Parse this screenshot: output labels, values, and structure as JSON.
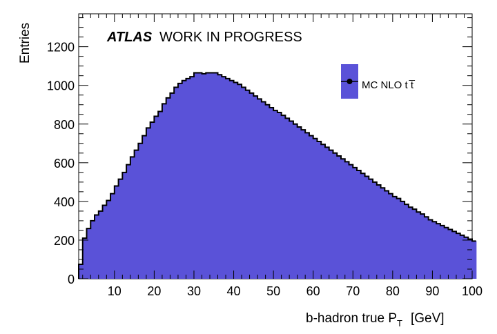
{
  "chart_data": {
    "type": "histogram",
    "header": {
      "experiment": "ATLAS",
      "status": "WORK IN PROGRESS"
    },
    "xlabel": {
      "main": "b-hadron true P",
      "subscript": "T",
      "unit": "[GeV]"
    },
    "ylabel": "Entries",
    "xlim": [
      1,
      100
    ],
    "ylim": [
      0,
      1370
    ],
    "bin_width": 1,
    "x_ticks": [
      10,
      20,
      30,
      40,
      50,
      60,
      70,
      80,
      90,
      100
    ],
    "x_tick_labels": [
      "10",
      "20",
      "30",
      "40",
      "50",
      "60",
      "70",
      "80",
      "90",
      "100"
    ],
    "y_ticks": [
      0,
      200,
      400,
      600,
      800,
      1000,
      1200
    ],
    "y_tick_labels": [
      "0",
      "200",
      "400",
      "600",
      "800",
      "1000",
      "1200"
    ],
    "legend": {
      "label": "MC NLO t  t̅",
      "placement": "top-right"
    },
    "series": [
      {
        "fill_color": "#5a52d8",
        "line_color": "#000000",
        "bin_edges_start": 1,
        "values": [
          75,
          210,
          260,
          300,
          330,
          350,
          380,
          405,
          440,
          480,
          515,
          550,
          590,
          630,
          665,
          700,
          740,
          780,
          810,
          840,
          865,
          905,
          935,
          960,
          990,
          1010,
          1025,
          1035,
          1045,
          1065,
          1065,
          1060,
          1065,
          1065,
          1065,
          1055,
          1045,
          1035,
          1025,
          1015,
          1005,
          990,
          975,
          960,
          945,
          930,
          915,
          900,
          885,
          870,
          860,
          845,
          830,
          815,
          800,
          785,
          770,
          755,
          740,
          725,
          710,
          695,
          680,
          665,
          650,
          635,
          620,
          605,
          590,
          575,
          560,
          545,
          530,
          515,
          500,
          485,
          470,
          455,
          440,
          425,
          415,
          400,
          385,
          370,
          360,
          345,
          335,
          320,
          305,
          295,
          285,
          275,
          265,
          255,
          245,
          235,
          225,
          215,
          205,
          195
        ]
      }
    ]
  }
}
